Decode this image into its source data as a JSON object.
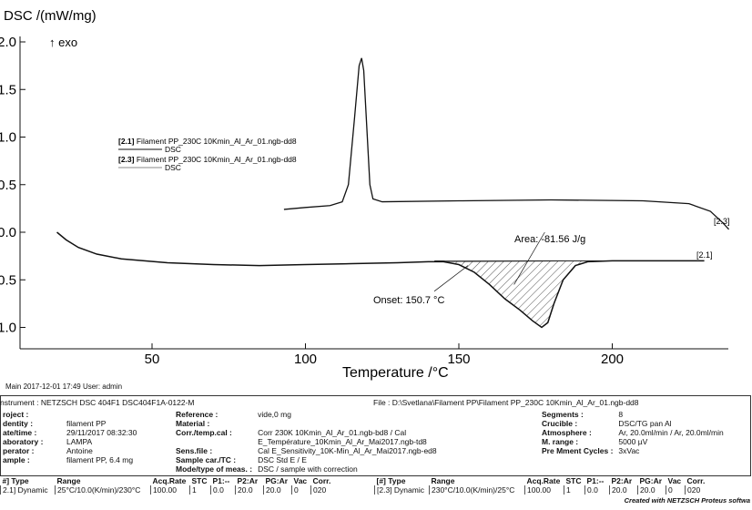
{
  "chart_data": {
    "type": "line",
    "ylabel": "DSC /(mW/mg)",
    "y_annotation": "↑ exo",
    "xlabel": "Temperature /°C",
    "xlim": [
      7,
      238
    ],
    "ylim": [
      -1.22,
      2.05
    ],
    "xticks": [
      50,
      100,
      150,
      200
    ],
    "yticks": [
      2.0,
      1.5,
      1.0,
      0.5,
      0.0,
      -0.5,
      -1.0
    ],
    "ytick_labels": [
      "2.0",
      "1.5",
      "1.0",
      "0.5",
      "0.0",
      "-0.5",
      "-1.0"
    ],
    "grid": false,
    "legend": {
      "placement": "upper-left",
      "entries": [
        {
          "id": "[2.1]",
          "file": "Filament PP_230C 10Kmin_Al_Ar_01.ngb-dd8",
          "signal": "DSC"
        },
        {
          "id": "[2.3]",
          "file": "Filament PP_230C 10Kmin_Al_Ar_01.ngb-dd8",
          "signal": "DSC"
        }
      ]
    },
    "series": [
      {
        "name": "[2.1]",
        "x": [
          19,
          22,
          26,
          32,
          40,
          55,
          70,
          85,
          100,
          115,
          130,
          140,
          145,
          150,
          155,
          160,
          165,
          170,
          174,
          177,
          179,
          181,
          184,
          188,
          192,
          200,
          215,
          230
        ],
        "y": [
          0.0,
          -0.08,
          -0.16,
          -0.23,
          -0.28,
          -0.32,
          -0.34,
          -0.35,
          -0.34,
          -0.33,
          -0.32,
          -0.31,
          -0.31,
          -0.34,
          -0.42,
          -0.55,
          -0.7,
          -0.82,
          -0.93,
          -1.0,
          -0.95,
          -0.75,
          -0.5,
          -0.35,
          -0.31,
          -0.3,
          -0.3,
          -0.3
        ]
      },
      {
        "name": "[2.3]",
        "x": [
          93,
          100,
          108,
          112,
          114,
          116,
          117.5,
          118.3,
          119,
          120,
          121,
          122,
          125,
          150,
          180,
          210,
          225,
          232,
          236,
          238
        ],
        "y": [
          0.24,
          0.26,
          0.28,
          0.32,
          0.5,
          1.2,
          1.75,
          1.83,
          1.7,
          1.1,
          0.5,
          0.35,
          0.32,
          0.33,
          0.34,
          0.33,
          0.3,
          0.22,
          0.1,
          0.03
        ]
      }
    ],
    "annotations": {
      "area": "Area: -81.56 J/g",
      "onset": "Onset: 150.7 °C",
      "area_range": [
        145,
        200
      ],
      "label_21": "[2.1]",
      "label_23": "[2.3]"
    }
  },
  "meta": "Main   2017-12-01 17:49   User: admin",
  "instrument": "nstrument :  NETZSCH DSC 404F1 DSC404F1A-0122-M",
  "file": "File :  D:\\Svetlana\\Filament PP\\Filament PP_230C 10Kmin_Al_Ar_01.ngb-dd8",
  "left": [
    [
      "roject :",
      ""
    ],
    [
      "dentity :",
      "filament PP"
    ],
    [
      "ate/time :",
      "29/11/2017 08:32:30"
    ],
    [
      "aboratory :",
      "LAMPA"
    ],
    [
      "perator :",
      "Antoine"
    ],
    [
      "ample :",
      "filament PP, 6.4 mg"
    ]
  ],
  "mid": [
    [
      "Reference :",
      "vide,0 mg"
    ],
    [
      "Material :",
      ""
    ],
    [
      "Corr./temp.cal :",
      "Corr 230K 10Kmin_Al_Ar_01.ngb-bd8 / Cal E_Température_10Kmin_Al_Ar_Mai2017.ngb-td8"
    ],
    [
      "Sens.file :",
      "Cal E_Sensitivity_10K-Min_Al_Ar_Mai2017.ngb-ed8"
    ],
    [
      "Sample car./TC :",
      "DSC Std E / E"
    ],
    [
      "Mode/type of meas. :",
      "DSC / sample with correction"
    ]
  ],
  "right": [
    [
      "Segments :",
      "8"
    ],
    [
      "Crucible :",
      "DSC/TG pan Al"
    ],
    [
      "Atmosphere :",
      "Ar, 20.0ml/min / Ar, 20.0ml/min"
    ],
    [
      "M. range :",
      "5000 µV"
    ],
    [
      "Pre Mment Cycles :",
      "3xVac"
    ]
  ],
  "seg_headers": [
    "#] Type",
    "Range",
    "Acq.Rate",
    "STC",
    "P1:--",
    "P2:Ar",
    "PG:Ar",
    "Vac",
    "Corr."
  ],
  "seg1": [
    "2.1] Dynamic",
    "25°C/10.0(K/min)/230°C",
    "100.00",
    "1",
    "0.0",
    "20.0",
    "20.0",
    "0",
    "020"
  ],
  "seg_headers2": [
    "[#] Type",
    "Range",
    "Acq.Rate",
    "STC",
    "P1:--",
    "P2:Ar",
    "PG:Ar",
    "Vac",
    "Corr."
  ],
  "seg2": [
    "[2.3] Dynamic",
    "230°C/10.0(K/min)/25°C",
    "100.00",
    "1",
    "0.0",
    "20.0",
    "20.0",
    "0",
    "020"
  ],
  "credit": "Created with NETZSCH Proteus softwa"
}
